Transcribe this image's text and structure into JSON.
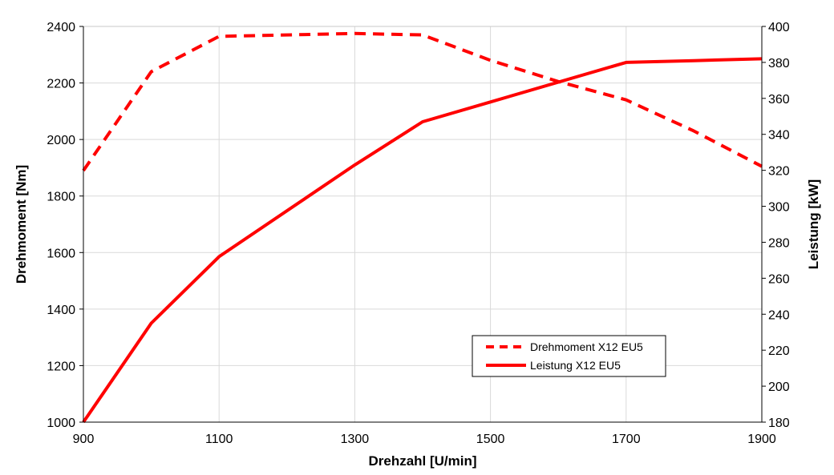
{
  "chart_data": {
    "type": "line",
    "x": [
      900,
      1000,
      1100,
      1200,
      1300,
      1400,
      1500,
      1600,
      1700,
      1800,
      1900
    ],
    "xlabel": "Drehzahl [U/min]",
    "xlim": [
      900,
      1900
    ],
    "x_ticks": [
      "900",
      "1100",
      "1300",
      "1500",
      "1700",
      "1900"
    ],
    "ylabel_left": "Drehmoment [Nm]",
    "ylim_left": [
      1000,
      2400
    ],
    "y_ticks_left": [
      "1000",
      "1200",
      "1400",
      "1600",
      "1800",
      "2000",
      "2200",
      "2400"
    ],
    "ylabel_right": "Leistung [kW]",
    "ylim_right": [
      180,
      400
    ],
    "y_ticks_right": [
      "180",
      "200",
      "220",
      "240",
      "260",
      "280",
      "300",
      "320",
      "340",
      "360",
      "380",
      "400"
    ],
    "grid": true,
    "legend_position": "bottom-right",
    "series": [
      {
        "name": "Drehmoment X12 EU5",
        "axis": "left",
        "style": "dashed",
        "color": "#ff0000",
        "x": [
          900,
          1000,
          1100,
          1300,
          1400,
          1500,
          1600,
          1700,
          1800,
          1900
        ],
        "values": [
          1890,
          2240,
          2365,
          2375,
          2370,
          2280,
          2205,
          2140,
          2030,
          1905
        ]
      },
      {
        "name": "Leistung X12 EU5",
        "axis": "right",
        "style": "solid",
        "color": "#ff0000",
        "x": [
          900,
          1000,
          1100,
          1300,
          1400,
          1500,
          1700,
          1800,
          1900
        ],
        "values": [
          180,
          235,
          272,
          323,
          347,
          358,
          380,
          381,
          382
        ]
      }
    ]
  }
}
